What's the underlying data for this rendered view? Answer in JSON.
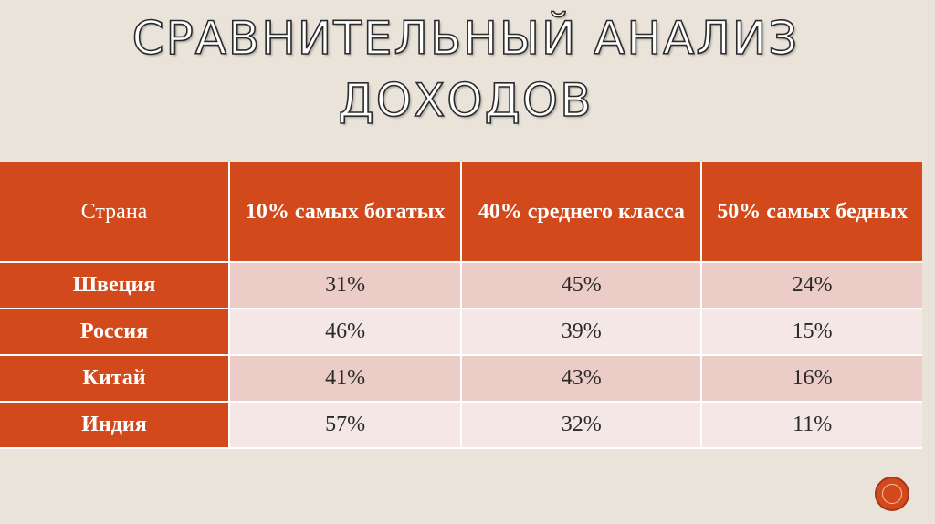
{
  "slide": {
    "title": "СРАВНИТЕЛЬНЫЙ АНАЛИЗ ДОХОДОВ",
    "colors": {
      "background": "#e9e3d9",
      "accent": "#d2491b",
      "row_odd": "#ecccc7",
      "row_even": "#f5e7e5"
    }
  },
  "table": {
    "headers": [
      "Страна",
      "10% самых богатых",
      "40% среднего класса",
      "50% самых бедных"
    ],
    "rows": [
      {
        "country": "Швеция",
        "values": [
          "31%",
          "45%",
          "24%"
        ]
      },
      {
        "country": "Россия",
        "values": [
          "46%",
          "39%",
          "15%"
        ]
      },
      {
        "country": "Китай",
        "values": [
          "41%",
          "43%",
          "16%"
        ]
      },
      {
        "country": "Индия",
        "values": [
          "57%",
          "32%",
          "11%"
        ]
      }
    ]
  },
  "chart_data": {
    "type": "table",
    "columns": [
      "Страна",
      "10% самых богатых",
      "40% среднего класса",
      "50% самых бедных"
    ],
    "rows": [
      [
        "Швеция",
        "31%",
        "45%",
        "24%"
      ],
      [
        "Россия",
        "46%",
        "39%",
        "15%"
      ],
      [
        "Китай",
        "41%",
        "43%",
        "16%"
      ],
      [
        "Индия",
        "57%",
        "32%",
        "11%"
      ]
    ]
  },
  "nav": {
    "icon": "circle-nav-icon"
  }
}
